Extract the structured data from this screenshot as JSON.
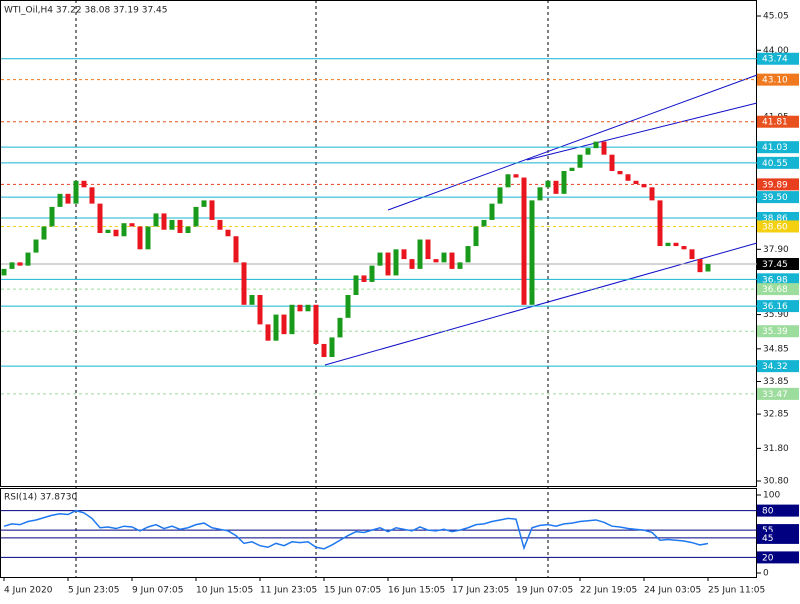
{
  "chart_data": [
    {
      "type": "candlestick",
      "title": "WTI_Oil,H4  37.22 38.08 37.19 37.45",
      "categories": [
        "4 Jun 2020",
        null,
        null,
        null,
        null,
        null,
        null,
        null,
        "5 Jun 23:05",
        null,
        null,
        null,
        null,
        null,
        null,
        null,
        "9 Jun 07:05",
        null,
        null,
        null,
        null,
        null,
        null,
        null,
        "10 Jun 15:05",
        null,
        null,
        null,
        null,
        null,
        null,
        null,
        "11 Jun 23:05",
        null,
        null,
        null,
        null,
        null,
        null,
        null,
        "15 Jun 07:05",
        null,
        null,
        null,
        null,
        null,
        null,
        null,
        "16 Jun 15:05",
        null,
        null,
        null,
        null,
        null,
        null,
        null,
        "17 Jun 23:05",
        null,
        null,
        null,
        null,
        null,
        null,
        null,
        "19 Jun 07:05",
        null,
        null,
        null,
        null,
        null,
        null,
        null,
        "22 Jun 19:05",
        null,
        null,
        null,
        null,
        null,
        null,
        null,
        "24 Jun 03:05",
        null,
        null,
        null,
        null,
        null,
        null,
        null,
        "25 Jun 11:05"
      ],
      "open": [
        37.1,
        37.3,
        37.5,
        37.4,
        37.8,
        38.2,
        38.6,
        39.2,
        39.6,
        39.3,
        40.0,
        39.8,
        39.3,
        38.4,
        38.5,
        38.3,
        38.7,
        38.6,
        37.9,
        38.6,
        39.0,
        38.5,
        38.8,
        38.4,
        38.6,
        39.2,
        39.4,
        38.8,
        38.5,
        38.3,
        37.5,
        36.2,
        36.5,
        35.6,
        35.1,
        35.9,
        35.3,
        36.2,
        36.0,
        36.2,
        35.0,
        34.6,
        35.2,
        35.8,
        36.5,
        37.1,
        36.9,
        37.4,
        37.8,
        37.1,
        37.9,
        37.6,
        37.3,
        38.2,
        37.6,
        37.5,
        37.8,
        37.3,
        37.5,
        38.0,
        38.6,
        38.8,
        39.3,
        39.8,
        40.2,
        40.1,
        36.2,
        39.4,
        39.8,
        40.0,
        39.6,
        40.3,
        40.4,
        40.8,
        41.0,
        41.2,
        40.8,
        40.3,
        40.2,
        40.0,
        39.9,
        39.8,
        39.4,
        38.0,
        38.1,
        38.0,
        37.9,
        37.6,
        37.22
      ],
      "close": [
        37.3,
        37.5,
        37.4,
        37.8,
        38.2,
        38.6,
        39.2,
        39.6,
        39.3,
        40.0,
        39.8,
        39.3,
        38.4,
        38.5,
        38.3,
        38.7,
        38.6,
        37.9,
        38.6,
        39.0,
        38.5,
        38.8,
        38.4,
        38.6,
        39.2,
        39.4,
        38.8,
        38.5,
        38.3,
        37.5,
        36.2,
        36.5,
        35.6,
        35.1,
        35.9,
        35.3,
        36.2,
        36.0,
        36.2,
        35.0,
        34.6,
        35.2,
        35.8,
        36.5,
        37.1,
        36.9,
        37.4,
        37.8,
        37.1,
        37.9,
        37.6,
        37.3,
        38.2,
        37.6,
        37.5,
        37.8,
        37.3,
        37.5,
        38.0,
        38.6,
        38.8,
        39.3,
        39.8,
        40.2,
        40.1,
        36.2,
        39.4,
        39.8,
        40.0,
        39.6,
        40.3,
        40.4,
        40.8,
        41.0,
        41.2,
        40.8,
        40.3,
        40.2,
        40.0,
        39.9,
        39.8,
        39.4,
        38.0,
        38.1,
        38.0,
        37.9,
        37.6,
        37.2,
        37.45
      ],
      "up_color": "#1a9a1a",
      "down_color": "#e8141e",
      "ylim": [
        30.8,
        45.05
      ],
      "yticks": [
        45.05,
        {
          "value": 44,
          "label": "44.00"
        },
        {
          "value": 43,
          "label": "43.00"
        },
        41.95,
        40.95,
        39.95,
        {
          "value": 38.9,
          "label": "38.90"
        },
        {
          "value": 37.9,
          "label": "37.90"
        },
        {
          "value": 36.9,
          "label": "36.90"
        },
        {
          "value": 35.9,
          "label": "35.90"
        },
        34.85,
        33.85,
        32.85,
        {
          "value": 31.8,
          "label": "31.80"
        },
        {
          "value": 30.8,
          "label": "30.80"
        }
      ],
      "levels": [
        {
          "value": 43.74,
          "color": "#14b4d2",
          "style": "solid"
        },
        {
          "value": 43.1,
          "label": "43.10",
          "color": "#f0781e",
          "style": "dashed"
        },
        {
          "value": 41.81,
          "color": "#e8501e",
          "style": "dashed"
        },
        {
          "value": 41.03,
          "color": "#14b4d2",
          "style": "solid"
        },
        {
          "value": 40.55,
          "color": "#14b4d2",
          "style": "solid"
        },
        {
          "value": 39.89,
          "color": "#e8401e",
          "style": "dashed"
        },
        {
          "value": 39.5,
          "label": "39.50",
          "color": "#14b4d2",
          "style": "solid"
        },
        {
          "value": 38.86,
          "color": "#14b4d2",
          "style": "solid"
        },
        {
          "value": 38.6,
          "label": "38.60",
          "color": "#f5d010",
          "style": "dashed"
        },
        {
          "value": 37.45,
          "color": "#000000",
          "style": "solid"
        },
        {
          "value": 36.98,
          "color": "#14b4d2",
          "style": "solid"
        },
        {
          "value": 36.68,
          "color": "#9cdc9c",
          "style": "dashed"
        },
        {
          "value": 36.16,
          "color": "#14b4d2",
          "style": "solid"
        },
        {
          "value": 35.39,
          "color": "#9cdc9c",
          "style": "dashed"
        },
        {
          "value": 34.32,
          "color": "#14b4d2",
          "style": "solid"
        },
        {
          "value": 33.47,
          "color": "#9cdc9c",
          "style": "dashed"
        }
      ]
    },
    {
      "type": "line",
      "title": "RSI(14) 37.8730",
      "color": "#1e78f0",
      "values": [
        60,
        63,
        62,
        66,
        68,
        71,
        74,
        76,
        75,
        80,
        77,
        70,
        58,
        59,
        57,
        60,
        59,
        54,
        59,
        62,
        57,
        60,
        56,
        58,
        62,
        64,
        58,
        56,
        54,
        48,
        38,
        40,
        35,
        33,
        38,
        35,
        40,
        39,
        40,
        33,
        31,
        36,
        42,
        48,
        53,
        52,
        55,
        58,
        53,
        58,
        56,
        54,
        59,
        55,
        54,
        56,
        53,
        55,
        58,
        62,
        63,
        66,
        68,
        70,
        69,
        32,
        58,
        61,
        62,
        60,
        63,
        64,
        66,
        67,
        68,
        65,
        60,
        59,
        57,
        56,
        55,
        52,
        42,
        43,
        42,
        41,
        39,
        36,
        37.873
      ],
      "ylim": [
        0,
        100
      ],
      "yticks": [
        100,
        80,
        55,
        45,
        20,
        0
      ],
      "levels": [
        {
          "value": 80,
          "color": "#000080",
          "style": "solid"
        },
        {
          "value": 55,
          "color": "#000080",
          "style": "solid"
        },
        {
          "value": 45,
          "color": "#000080",
          "style": "solid"
        },
        {
          "value": 20,
          "color": "#000080",
          "style": "solid"
        }
      ]
    }
  ]
}
